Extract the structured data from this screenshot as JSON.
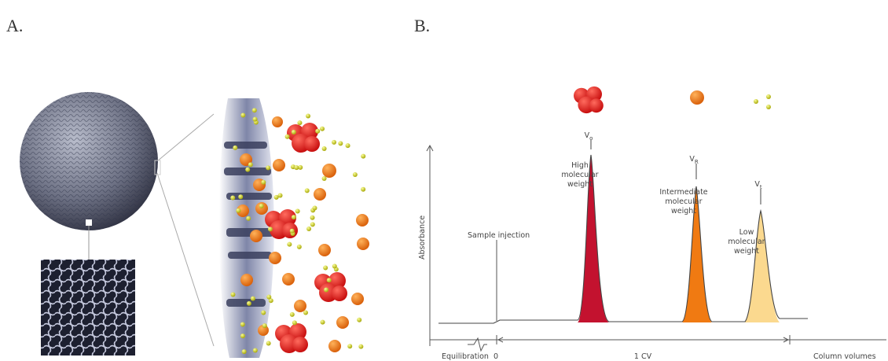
{
  "panels": {
    "a": {
      "label": "A."
    },
    "b": {
      "label": "B."
    }
  },
  "chromatogram": {
    "y_axis_label": "Absorbance",
    "sample_injection": "Sample injection",
    "peaks": [
      {
        "symbol": "V",
        "subscript": "o",
        "label_lines": [
          "High",
          "molecular",
          "weight"
        ]
      },
      {
        "symbol": "V",
        "subscript": "R",
        "label_lines": [
          "Intermediate",
          "molecular",
          "weight"
        ]
      },
      {
        "symbol": "V",
        "subscript": "t",
        "label_lines": [
          "Low",
          "molecular",
          "weight"
        ]
      }
    ],
    "x_axis": {
      "equilibration": "Equilibration",
      "zero": "0",
      "span": "1 CV",
      "unit": "Column volumes"
    }
  }
}
